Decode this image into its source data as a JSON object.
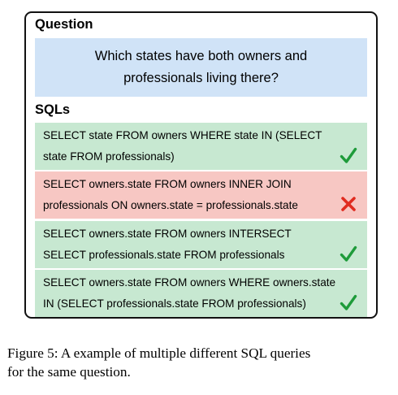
{
  "question": {
    "heading": "Question",
    "lines": [
      "Which states have both owners and",
      "professionals living there?"
    ]
  },
  "sqls": {
    "heading": "SQLs",
    "items": [
      {
        "lines": [
          "SELECT state FROM owners WHERE state IN (SELECT",
          "state FROM professionals)"
        ],
        "status": "correct",
        "icon": "check-icon",
        "color": "#1e9b3a"
      },
      {
        "lines": [
          "SELECT owners.state FROM owners INNER JOIN",
          "professionals ON owners.state = professionals.state"
        ],
        "status": "wrong",
        "icon": "cross-icon",
        "color": "#e02b1f"
      },
      {
        "lines": [
          "SELECT owners.state FROM owners INTERSECT",
          "SELECT professionals.state FROM professionals"
        ],
        "status": "correct",
        "icon": "check-icon",
        "color": "#1e9b3a"
      },
      {
        "lines": [
          "SELECT owners.state FROM owners WHERE owners.state",
          "IN (SELECT professionals.state FROM professionals)"
        ],
        "status": "correct",
        "icon": "check-icon",
        "color": "#1e9b3a"
      }
    ]
  },
  "caption": {
    "lines": [
      "Figure 5: A example of multiple different SQL queries",
      "for the same question."
    ]
  }
}
